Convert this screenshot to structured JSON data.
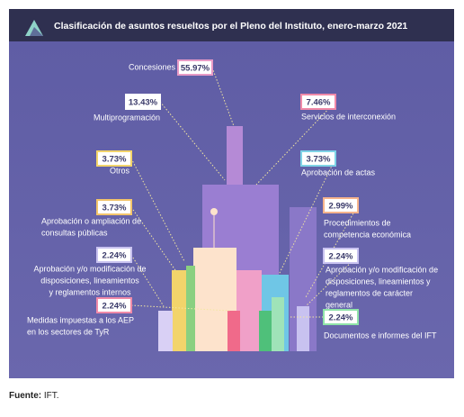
{
  "header": {
    "title": "Clasificación de asuntos resueltos por el Pleno del Instituto, enero-marzo 2021"
  },
  "items": [
    {
      "value": "55.97%",
      "lines": [
        "Concesiones"
      ],
      "color": "#e79ac6"
    },
    {
      "value": "13.43%",
      "lines": [
        "Multiprogramación"
      ],
      "color": "#ffffff"
    },
    {
      "value": "7.46%",
      "lines": [
        "Servicios de interconexión"
      ],
      "color": "#f08aa8"
    },
    {
      "value": "3.73%",
      "lines": [
        "Otros"
      ],
      "color": "#f2d46b"
    },
    {
      "value": "3.73%",
      "lines": [
        "Aprobación de actas"
      ],
      "color": "#7fd3e6"
    },
    {
      "value": "3.73%",
      "lines": [
        "Aprobación  o ampliación de",
        "consultas públicas"
      ],
      "color": "#f2c46b"
    },
    {
      "value": "2.99%",
      "lines": [
        "Procedimientos de",
        "competencia económica"
      ],
      "color": "#f6b48c"
    },
    {
      "value": "2.24%",
      "lines": [
        "Aprobación y/o modificación de",
        "disposiciones, lineamientos",
        "y reglamentos internos"
      ],
      "color": "#c8c2f0"
    },
    {
      "value": "2.24%",
      "lines": [
        "Aprobación y/o modificación de",
        "disposiciones, lineamientos y",
        "reglamentos de carácter",
        "general"
      ],
      "color": "#c8c2f0"
    },
    {
      "value": "2.24%",
      "lines": [
        "Medidas impuestas a los AEP",
        "en los sectores de TyR"
      ],
      "color": "#f08aa8"
    },
    {
      "value": "2.24%",
      "lines": [
        "Documentos e informes del IFT"
      ],
      "color": "#8fe3a8"
    }
  ],
  "footer": {
    "label": "Fuente:",
    "text": " IFT."
  }
}
